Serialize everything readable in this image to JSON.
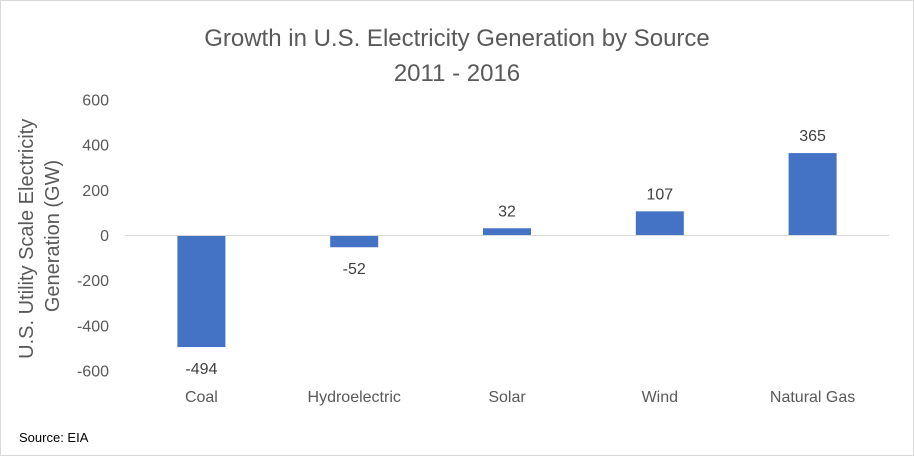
{
  "chart_data": {
    "type": "bar",
    "title": "Growth in U.S. Electricity Generation by Source",
    "subtitle": "2011 - 2016",
    "xlabel": "",
    "ylabel": "U.S. Utility Scale Electricity Generation (GW)",
    "ylabel_lines": [
      "U.S. Utility Scale Electricity",
      "Generation (GW)"
    ],
    "categories": [
      "Coal",
      "Hydroelectric",
      "Solar",
      "Wind",
      "Natural Gas"
    ],
    "values": [
      -494,
      -52,
      32,
      107,
      365
    ],
    "data_labels": [
      "-494",
      "-52",
      "32",
      "107",
      "365"
    ],
    "ylim": [
      -600,
      600
    ],
    "yticks": [
      600,
      400,
      200,
      0,
      -200,
      -400,
      -600
    ],
    "ytick_labels": [
      "600",
      "400",
      "200",
      "0",
      "-200",
      "-400",
      "-600"
    ],
    "grid": false,
    "legend": "none",
    "bar_color": "#4472c4",
    "zero_line_color": "#d9d9d9",
    "text_color": "#595959"
  },
  "source": "Source: EIA"
}
